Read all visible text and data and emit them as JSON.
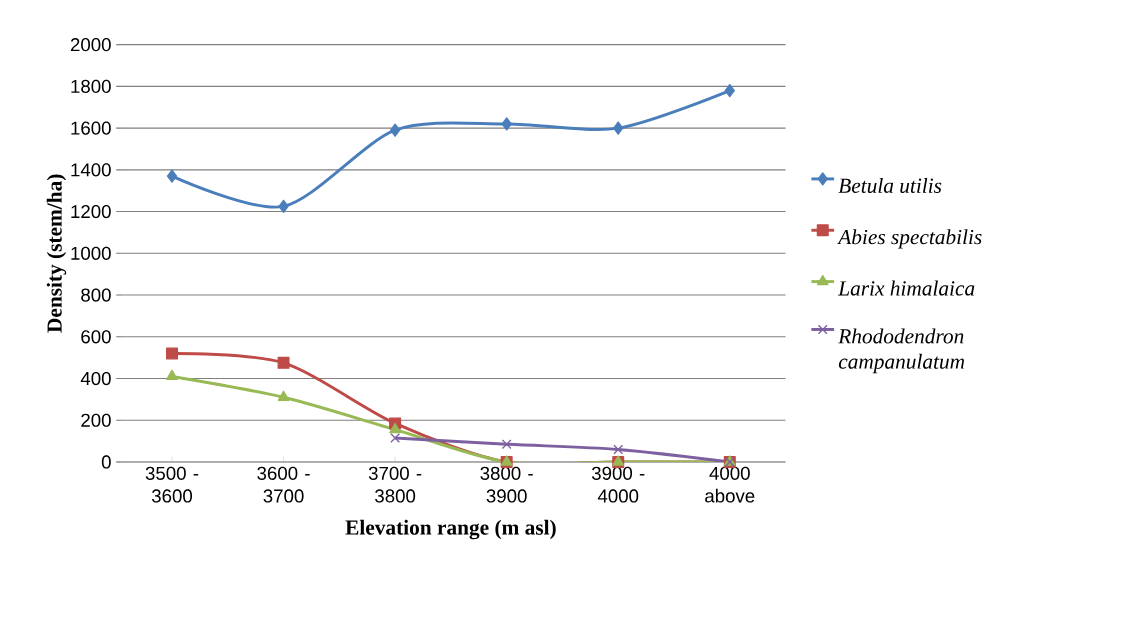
{
  "chart_data": {
    "type": "line",
    "xlabel": "Elevation  range (m asl)",
    "ylabel": "Density (stem/ha)",
    "categories": [
      "3500 - 3600",
      "3600 - 3700",
      "3700 - 3800",
      "3800 - 3900",
      "3900 - 4000",
      "4000 above"
    ],
    "series": [
      {
        "name": "Betula utilis",
        "color": "#4a7ebb",
        "marker": "diamond",
        "values": [
          1370,
          1225,
          1590,
          1620,
          1600,
          1780
        ]
      },
      {
        "name": "Abies spectabilis",
        "color": "#be4b48",
        "marker": "square",
        "values": [
          520,
          475,
          185,
          0,
          0,
          0
        ]
      },
      {
        "name": "Larix himalaica",
        "color": "#98b954",
        "marker": "triangle",
        "values": [
          410,
          310,
          155,
          0,
          0,
          0
        ]
      },
      {
        "name": "Rhododendron campanulatum",
        "color": "#7d60a0",
        "marker": "cross",
        "values": [
          null,
          null,
          115,
          85,
          60,
          0
        ]
      }
    ],
    "ylim": [
      0,
      2000
    ],
    "yticks": [
      0,
      200,
      400,
      600,
      800,
      1000,
      1200,
      1400,
      1600,
      1800,
      2000
    ],
    "grid": "y",
    "legend": "right",
    "line_style": "solid"
  }
}
